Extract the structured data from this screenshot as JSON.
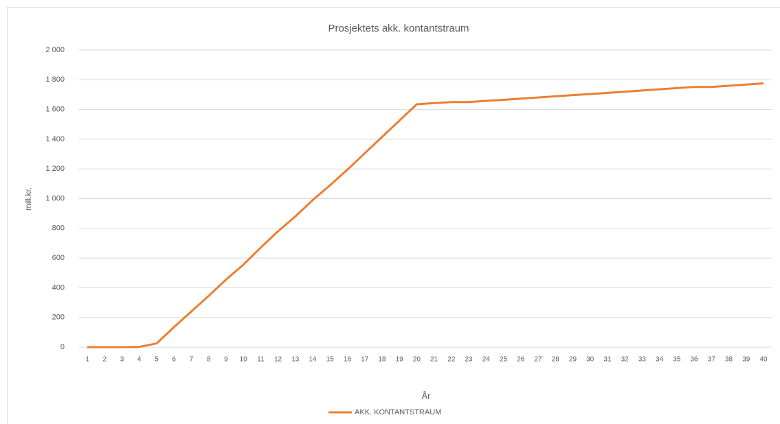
{
  "chart_data": {
    "type": "line",
    "title": "Prosjektets akk. kontantstraum",
    "x_label": "År",
    "y_label": "mill.kr.",
    "categories": [
      "1",
      "2",
      "3",
      "4",
      "5",
      "6",
      "7",
      "8",
      "9",
      "10",
      "11",
      "12",
      "13",
      "14",
      "15",
      "16",
      "17",
      "18",
      "19",
      "20",
      "21",
      "22",
      "23",
      "24",
      "25",
      "26",
      "27",
      "28",
      "29",
      "30",
      "31",
      "32",
      "33",
      "34",
      "35",
      "36",
      "37",
      "38",
      "39",
      "40"
    ],
    "series": [
      {
        "name": "AKK. KONTANTSTRAUM",
        "color": "#ed7d31",
        "values": [
          0,
          0,
          0,
          2,
          25,
          135,
          240,
          345,
          455,
          555,
          670,
          780,
          880,
          990,
          1090,
          1195,
          1305,
          1415,
          1525,
          1635,
          1643,
          1650,
          1650,
          1658,
          1665,
          1673,
          1681,
          1689,
          1697,
          1704,
          1712,
          1720,
          1728,
          1736,
          1744,
          1752,
          1752,
          1760,
          1768,
          1776
        ]
      }
    ],
    "ylim": [
      0,
      2000
    ],
    "yticks": [
      0,
      200,
      400,
      600,
      800,
      {
        "value": 1000,
        "label": "1 000"
      },
      {
        "value": 1200,
        "label": "1 200"
      },
      {
        "value": 1400,
        "label": "1 400"
      },
      {
        "value": 1600,
        "label": "1 600"
      },
      {
        "value": 1800,
        "label": "1 800"
      },
      {
        "value": 2000,
        "label": "2 000"
      }
    ],
    "grid": true,
    "legend": "bottom"
  }
}
